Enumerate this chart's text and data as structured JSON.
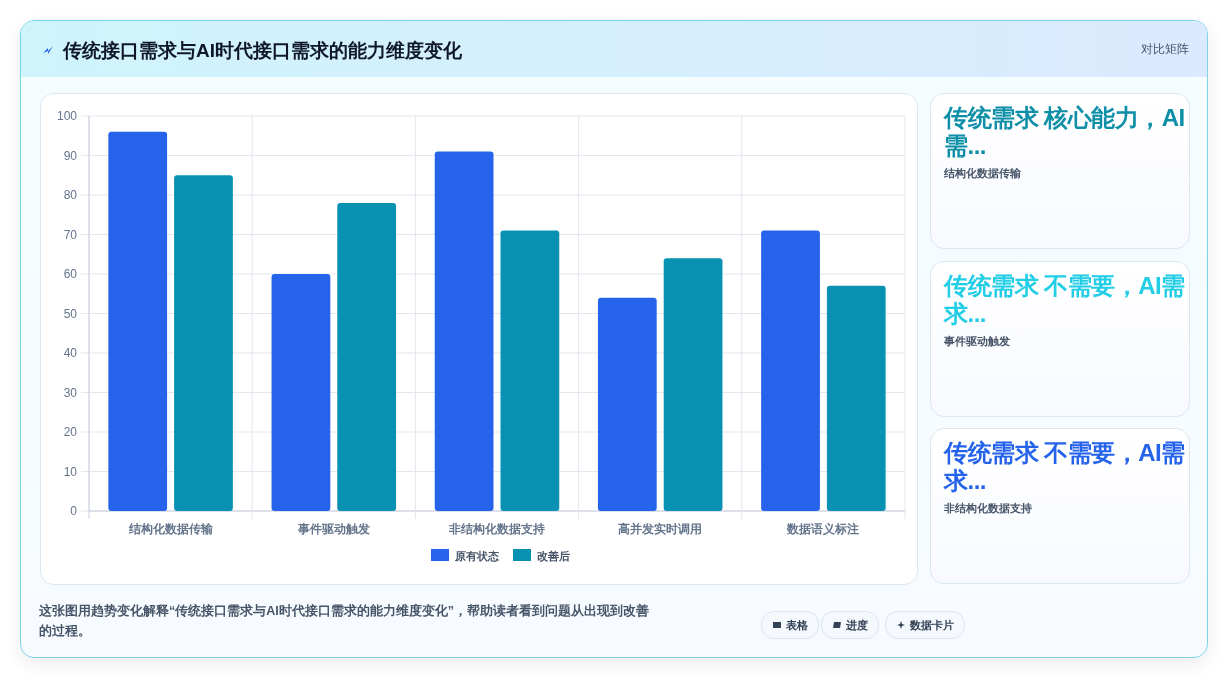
{
  "chart_data": [
    {
      "type": "bar",
      "title": "传统接口需求与AI时代接口需求的能力维度变化",
      "categories": [
        "结构化数据传输",
        "事件驱动触发",
        "非结构化数据支持",
        "高并发实时调用",
        "数据语义标注"
      ],
      "series": [
        {
          "name": "原有状态",
          "color": "#2563eb",
          "values": [
            96,
            60,
            91,
            54,
            71
          ]
        },
        {
          "name": "改善后",
          "color": "#0891b2",
          "values": [
            85,
            78,
            71,
            64,
            57
          ]
        }
      ],
      "ylim": [
        0,
        100
      ],
      "yticks": [
        0,
        10,
        20,
        30,
        40,
        50,
        60,
        70,
        80,
        90,
        100
      ],
      "grid": true,
      "legend": "bottom",
      "annotations": [
        "对比矩阵",
        "这张图用趋势变化解释“传统接口需求与AI时代接口需求的能力维度变化”，帮助读者看到问题从出现到改善的过程。",
        "表格",
        "进度",
        "数据卡片"
      ]
    },
    {
      "type": "other",
      "title": "传统需求 核心能力，AI需...",
      "subtitle": "结构化数据传输"
    },
    {
      "type": "other",
      "title": "传统需求 不需要，AI需求...",
      "subtitle": "事件驱动触发"
    },
    {
      "type": "other",
      "title": "传统需求 不需要，AI需求...",
      "subtitle": "非结构化数据支持"
    }
  ]
}
